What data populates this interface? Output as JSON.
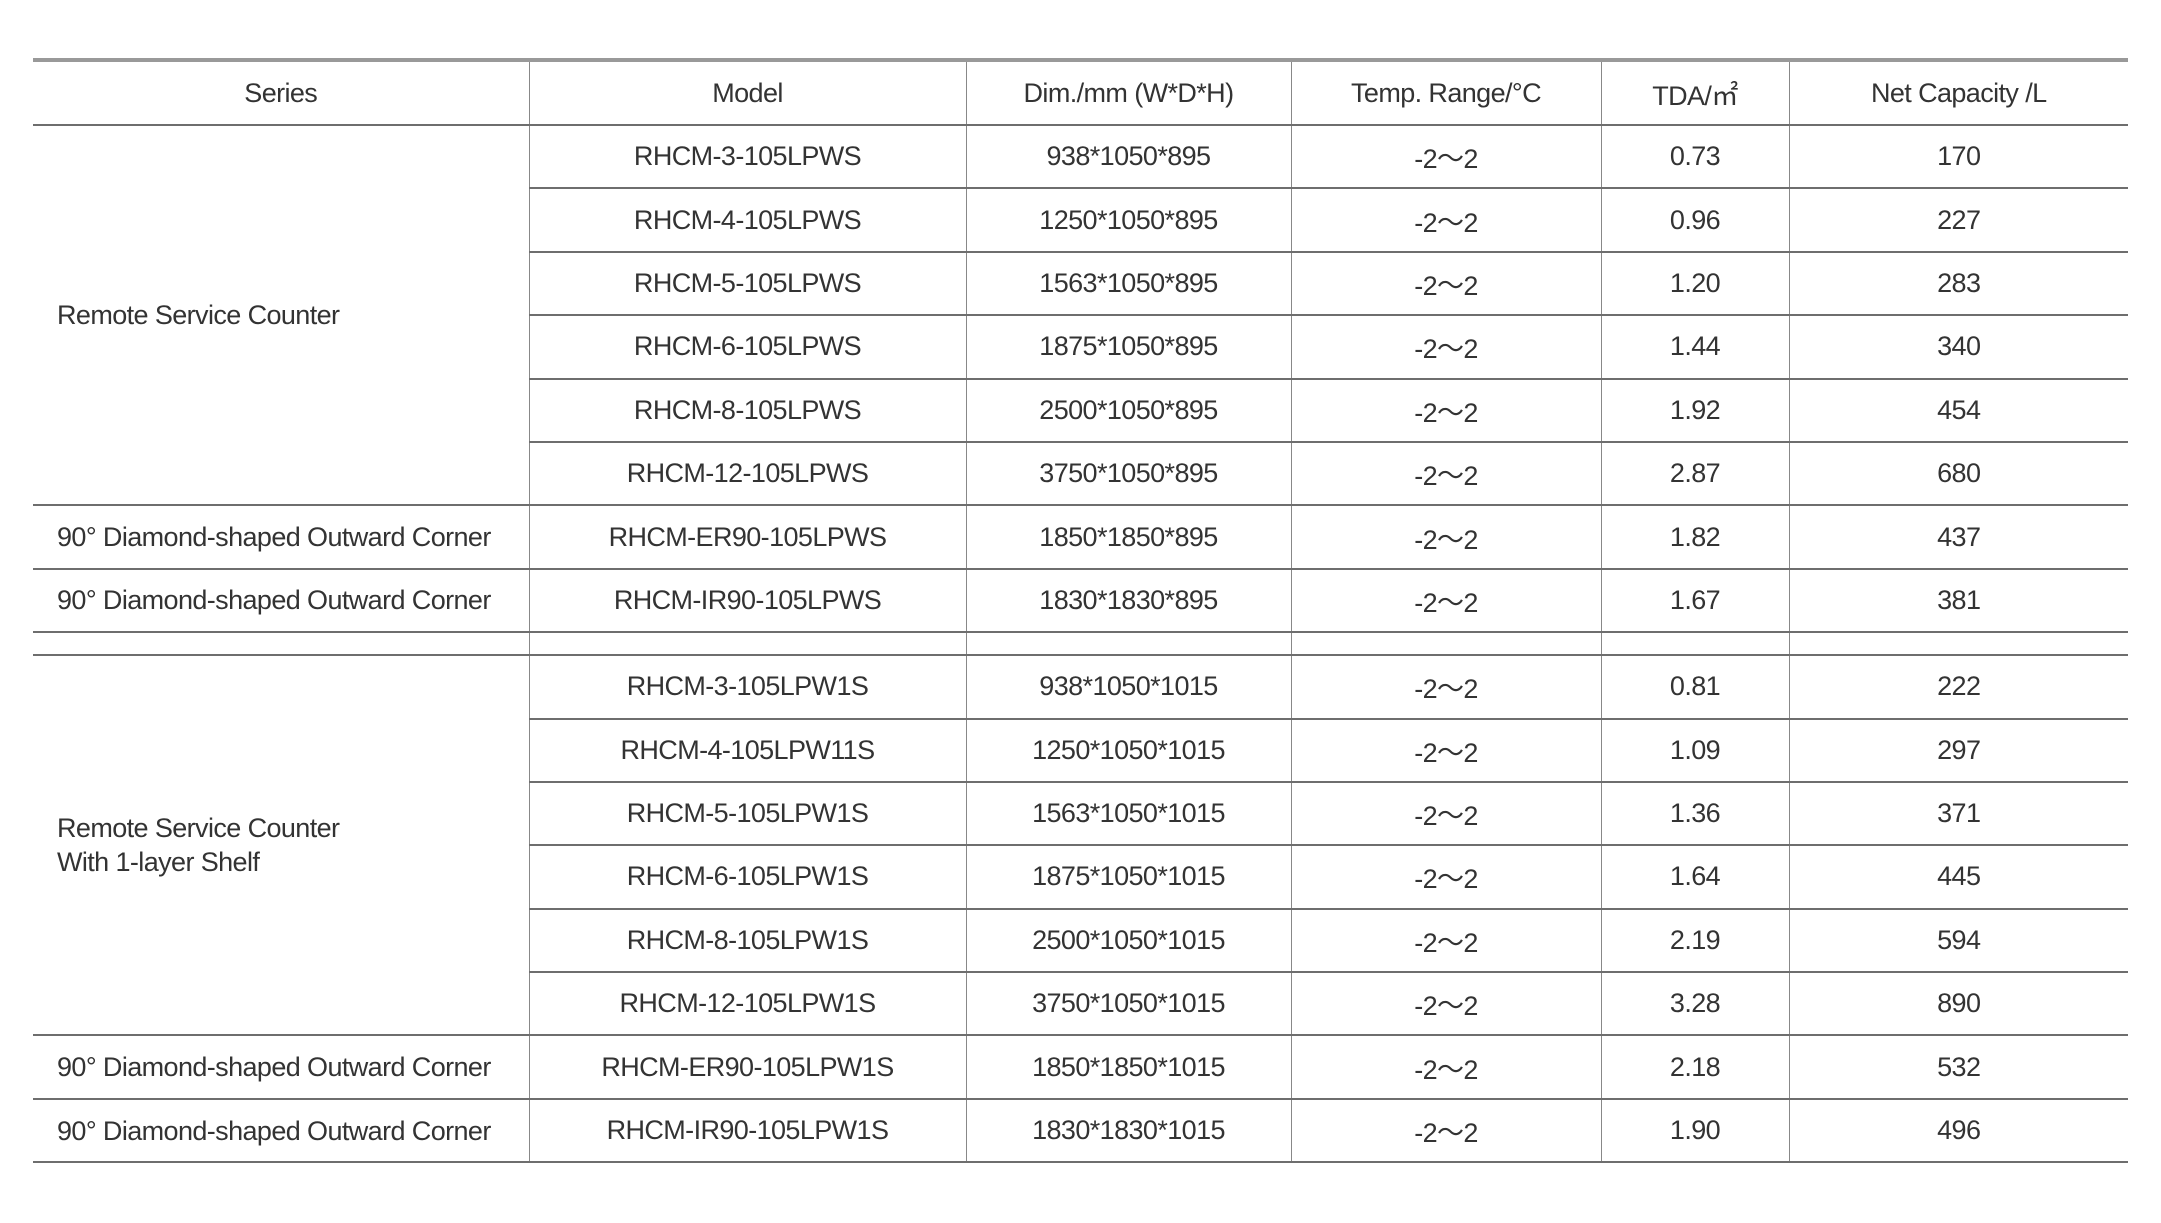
{
  "headers": [
    "Series",
    "Model",
    "Dim./mm (W*D*H)",
    "Temp. Range/°C",
    "TDA/㎡",
    "Net Capacity /L"
  ],
  "groups": [
    {
      "series_lines": [
        "Remote Service Counter"
      ],
      "rows": [
        [
          "RHCM-3-105LPWS",
          "938*1050*895",
          "-2～2",
          "0.73",
          "170"
        ],
        [
          "RHCM-4-105LPWS",
          "1250*1050*895",
          "-2～2",
          "0.96",
          "227"
        ],
        [
          "RHCM-5-105LPWS",
          "1563*1050*895",
          "-2～2",
          "1.20",
          "283"
        ],
        [
          "RHCM-6-105LPWS",
          "1875*1050*895",
          "-2～2",
          "1.44",
          "340"
        ],
        [
          "RHCM-8-105LPWS",
          "2500*1050*895",
          "-2～2",
          "1.92",
          "454"
        ],
        [
          "RHCM-12-105LPWS",
          "3750*1050*895",
          "-2～2",
          "2.87",
          "680"
        ]
      ]
    },
    {
      "series_lines": [
        "90° Diamond-shaped Outward Corner"
      ],
      "rows": [
        [
          "RHCM-ER90-105LPWS",
          "1850*1850*895",
          "-2～2",
          "1.82",
          "437"
        ]
      ]
    },
    {
      "series_lines": [
        "90° Diamond-shaped Outward Corner"
      ],
      "rows": [
        [
          "RHCM-IR90-105LPWS",
          "1830*1830*895",
          "-2～2",
          "1.67",
          "381"
        ]
      ]
    },
    {
      "spacer": true
    },
    {
      "series_lines": [
        "Remote Service Counter",
        "With 1-layer Shelf"
      ],
      "rows": [
        [
          "RHCM-3-105LPW1S",
          "938*1050*1015",
          "-2～2",
          "0.81",
          "222"
        ],
        [
          "RHCM-4-105LPW11S",
          "1250*1050*1015",
          "-2～2",
          "1.09",
          "297"
        ],
        [
          "RHCM-5-105LPW1S",
          "1563*1050*1015",
          "-2～2",
          "1.36",
          "371"
        ],
        [
          "RHCM-6-105LPW1S",
          "1875*1050*1015",
          "-2～2",
          "1.64",
          "445"
        ],
        [
          "RHCM-8-105LPW1S",
          "2500*1050*1015",
          "-2～2",
          "2.19",
          "594"
        ],
        [
          "RHCM-12-105LPW1S",
          "3750*1050*1015",
          "-2～2",
          "3.28",
          "890"
        ]
      ]
    },
    {
      "series_lines": [
        "90° Diamond-shaped Outward Corner"
      ],
      "rows": [
        [
          "RHCM-ER90-105LPW1S",
          "1850*1850*1015",
          "-2～2",
          "2.18",
          "532"
        ]
      ]
    },
    {
      "series_lines": [
        "90° Diamond-shaped Outward Corner"
      ],
      "rows": [
        [
          "RHCM-IR90-105LPW1S",
          "1830*1830*1015",
          "-2～2",
          "1.90",
          "496"
        ]
      ]
    }
  ]
}
